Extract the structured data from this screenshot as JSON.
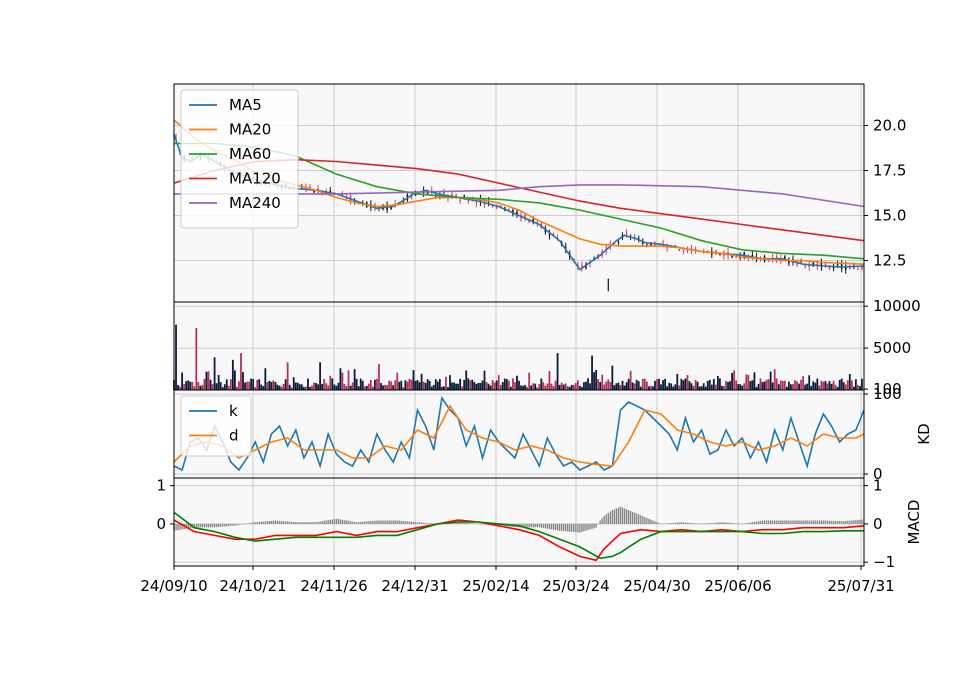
{
  "chart_data": {
    "type": "candlestick",
    "x_ticks": [
      "24/09/10",
      "24/10/21",
      "24/11/26",
      "24/12/31",
      "25/02/14",
      "25/03/24",
      "25/04/30",
      "25/06/06",
      "25/07/31"
    ],
    "panels": [
      {
        "name": "price",
        "ylim": [
          10.2,
          22.3
        ],
        "y_ticks": [
          "12.5",
          "15.0",
          "17.5",
          "20.0"
        ],
        "y_tick_values": [
          12.5,
          15.0,
          17.5,
          20.0
        ],
        "legend": [
          "MA5",
          "MA20",
          "MA60",
          "MA120",
          "MA240"
        ],
        "legend_position": "upper-left",
        "series": [
          {
            "name": "MA5",
            "color": "#1f77b4",
            "x": [
              0,
              4,
              8,
              14,
              20,
              30,
              40,
              50,
              60,
              70,
              80,
              90,
              100,
              108,
              114,
              118,
              124,
              130,
              140,
              150,
              160,
              170,
              180,
              190,
              200,
              210,
              218,
              222,
              225,
              228,
              232,
              240,
              250,
              260,
              270,
              280,
              290,
              300,
              310,
              320,
              330,
              340
            ],
            "y": [
              19.5,
              18.2,
              18.0,
              18.4,
              18.0,
              17.4,
              17.0,
              16.7,
              16.5,
              16.4,
              16.2,
              15.8,
              15.4,
              15.5,
              15.9,
              16.2,
              16.4,
              16.2,
              16.0,
              15.8,
              15.5,
              15.0,
              14.5,
              13.6,
              12.0,
              12.8,
              13.6,
              13.9,
              13.8,
              13.7,
              13.5,
              13.4,
              13.2,
              13.0,
              12.9,
              12.8,
              12.6,
              12.6,
              12.3,
              12.2,
              12.15,
              12.2
            ]
          },
          {
            "name": "MA20",
            "color": "#ff7f0e",
            "x": [
              0,
              10,
              20,
              30,
              40,
              50,
              60,
              70,
              80,
              90,
              100,
              110,
              120,
              130,
              140,
              150,
              160,
              170,
              180,
              190,
              200,
              210,
              220,
              230,
              240,
              250,
              260,
              270,
              280,
              290,
              300,
              310,
              320,
              330,
              340
            ],
            "y": [
              20.3,
              19.3,
              18.6,
              18.1,
              17.4,
              17.0,
              16.7,
              16.4,
              16.0,
              15.7,
              15.5,
              15.6,
              15.8,
              16.0,
              16.0,
              15.9,
              15.7,
              15.3,
              14.7,
              14.2,
              13.7,
              13.4,
              13.3,
              13.3,
              13.3,
              13.2,
              13.0,
              12.9,
              12.7,
              12.6,
              12.5,
              12.5,
              12.4,
              12.35,
              12.3
            ]
          },
          {
            "name": "MA60",
            "color": "#2ca02c",
            "x": [
              0,
              20,
              40,
              60,
              80,
              100,
              120,
              140,
              160,
              180,
              200,
              220,
              240,
              260,
              280,
              300,
              320,
              340
            ],
            "y": [
              19.0,
              19.0,
              18.8,
              18.3,
              17.3,
              16.6,
              16.2,
              16.0,
              15.9,
              15.7,
              15.3,
              14.8,
              14.3,
              13.6,
              13.1,
              12.9,
              12.8,
              12.6
            ]
          },
          {
            "name": "MA120",
            "color": "#d62728",
            "x": [
              0,
              20,
              40,
              60,
              80,
              100,
              120,
              140,
              160,
              180,
              200,
              220,
              240,
              260,
              280,
              300,
              320,
              340
            ],
            "y": [
              16.8,
              17.5,
              18.0,
              18.1,
              18.0,
              17.8,
              17.6,
              17.3,
              16.8,
              16.3,
              15.8,
              15.4,
              15.1,
              14.8,
              14.5,
              14.2,
              13.9,
              13.6
            ]
          },
          {
            "name": "MA240",
            "color": "#9467bd",
            "x": [
              0,
              40,
              80,
              120,
              160,
              180,
              200,
              220,
              260,
              300,
              340
            ],
            "y": [
              16.2,
              16.2,
              16.2,
              16.3,
              16.4,
              16.6,
              16.7,
              16.7,
              16.6,
              16.2,
              15.5
            ]
          }
        ]
      },
      {
        "name": "volume",
        "ylim": [
          0,
          10500
        ],
        "y_ticks": [
          "100",
          "5000",
          "10000"
        ],
        "y_tick_values": [
          100,
          5000,
          10000
        ],
        "spikes": {
          "x": [
            1,
            11,
            20,
            29,
            33,
            56,
            72,
            82,
            101,
            153,
            189,
            206,
            216
          ],
          "y": [
            7800,
            7400,
            3900,
            3600,
            4400,
            3300,
            3300,
            2600,
            3100,
            2300,
            4400,
            4100,
            2900
          ]
        }
      },
      {
        "name": "KD",
        "ylabel": "KD",
        "ylim": [
          -5,
          105
        ],
        "y_ticks": [
          "0",
          "100"
        ],
        "y_tick_values": [
          0,
          100
        ],
        "legend": [
          "k",
          "d"
        ],
        "legend_position": "upper-left",
        "series": [
          {
            "name": "k",
            "color": "#1f77b4",
            "x": [
              0,
              4,
              8,
              12,
              16,
              20,
              24,
              28,
              32,
              36,
              40,
              44,
              48,
              52,
              56,
              60,
              64,
              68,
              72,
              76,
              80,
              84,
              88,
              92,
              96,
              100,
              104,
              108,
              112,
              116,
              120,
              124,
              128,
              132,
              136,
              140,
              144,
              148,
              152,
              156,
              160,
              164,
              168,
              172,
              176,
              180,
              184,
              188,
              192,
              196,
              200,
              204,
              208,
              212,
              216,
              220,
              224,
              228,
              232,
              236,
              240,
              244,
              248,
              252,
              256,
              260,
              264,
              268,
              272,
              276,
              280,
              284,
              288,
              292,
              296,
              300,
              304,
              308,
              312,
              316,
              320,
              324,
              328,
              332,
              336,
              340
            ],
            "y": [
              10,
              5,
              40,
              45,
              30,
              60,
              40,
              15,
              5,
              20,
              40,
              15,
              50,
              60,
              35,
              55,
              20,
              40,
              10,
              50,
              25,
              15,
              10,
              30,
              15,
              50,
              30,
              15,
              40,
              20,
              80,
              60,
              30,
              95,
              80,
              70,
              35,
              60,
              20,
              55,
              40,
              30,
              20,
              50,
              30,
              10,
              45,
              25,
              10,
              15,
              5,
              10,
              15,
              5,
              10,
              80,
              90,
              85,
              80,
              70,
              60,
              50,
              30,
              70,
              40,
              55,
              25,
              30,
              55,
              35,
              45,
              20,
              40,
              15,
              55,
              30,
              70,
              40,
              10,
              50,
              75,
              60,
              40,
              50,
              55,
              80
            ]
          },
          {
            "name": "d",
            "color": "#ff7f0e",
            "x": [
              0,
              8,
              16,
              24,
              32,
              40,
              48,
              56,
              64,
              72,
              80,
              88,
              96,
              104,
              112,
              120,
              128,
              136,
              144,
              152,
              160,
              168,
              176,
              184,
              192,
              200,
              208,
              216,
              224,
              232,
              240,
              248,
              256,
              264,
              272,
              280,
              288,
              296,
              304,
              312,
              320,
              328,
              336,
              340
            ],
            "y": [
              15,
              35,
              40,
              35,
              20,
              30,
              40,
              45,
              30,
              30,
              30,
              20,
              20,
              35,
              30,
              55,
              45,
              85,
              55,
              45,
              40,
              30,
              35,
              30,
              20,
              15,
              12,
              10,
              40,
              80,
              75,
              55,
              50,
              40,
              35,
              40,
              30,
              35,
              45,
              35,
              50,
              45,
              45,
              50
            ]
          }
        ]
      },
      {
        "name": "MACD",
        "ylabel": "MACD",
        "ylim": [
          -1.1,
          1.2
        ],
        "y_ticks_left": [
          "0",
          "1"
        ],
        "y_tick_values_left": [
          0,
          1
        ],
        "y_ticks_right": [
          "−1",
          "0",
          "1"
        ],
        "y_tick_values_right": [
          -1,
          0,
          1
        ],
        "series": [
          {
            "name": "",
            "color": "#ff0000",
            "x": [
              0,
              10,
              20,
              30,
              40,
              50,
              60,
              70,
              80,
              90,
              100,
              110,
              120,
              130,
              140,
              150,
              160,
              170,
              180,
              190,
              200,
              208,
              212,
              216,
              220,
              230,
              240,
              250,
              260,
              270,
              280,
              290,
              300,
              310,
              320,
              330,
              340
            ],
            "y": [
              0.1,
              -0.2,
              -0.3,
              -0.4,
              -0.4,
              -0.3,
              -0.3,
              -0.3,
              -0.2,
              -0.3,
              -0.2,
              -0.2,
              -0.1,
              0.0,
              0.1,
              0.05,
              -0.05,
              -0.15,
              -0.3,
              -0.6,
              -0.85,
              -0.95,
              -0.65,
              -0.45,
              -0.25,
              -0.15,
              -0.2,
              -0.15,
              -0.2,
              -0.15,
              -0.2,
              -0.15,
              -0.15,
              -0.1,
              -0.1,
              -0.1,
              -0.05
            ]
          },
          {
            "name": "",
            "color": "#008000",
            "x": [
              0,
              10,
              20,
              30,
              40,
              50,
              60,
              70,
              80,
              90,
              100,
              110,
              120,
              130,
              140,
              150,
              160,
              170,
              180,
              190,
              200,
              210,
              216,
              220,
              230,
              240,
              250,
              260,
              270,
              280,
              290,
              300,
              310,
              320,
              330,
              340
            ],
            "y": [
              0.3,
              -0.1,
              -0.2,
              -0.35,
              -0.45,
              -0.4,
              -0.35,
              -0.35,
              -0.35,
              -0.35,
              -0.3,
              -0.3,
              -0.15,
              0.0,
              0.05,
              0.05,
              0.0,
              -0.05,
              -0.2,
              -0.4,
              -0.6,
              -0.9,
              -0.85,
              -0.75,
              -0.4,
              -0.2,
              -0.2,
              -0.2,
              -0.2,
              -0.2,
              -0.25,
              -0.25,
              -0.2,
              -0.2,
              -0.18,
              -0.18
            ]
          }
        ]
      }
    ]
  }
}
